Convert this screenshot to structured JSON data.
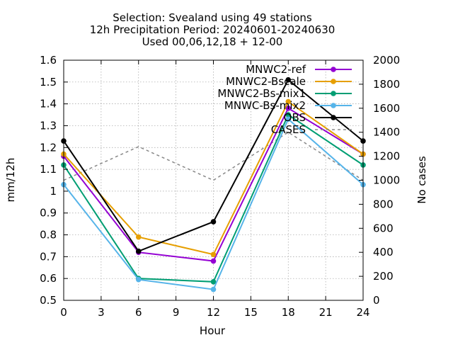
{
  "chart_data": {
    "type": "line",
    "title_lines": [
      "Selection: Svealand using    49 stations",
      "12h Precipitation   Period: 20240601-20240630",
      "Used 00,06,12,18 + 12-00"
    ],
    "xlabel": "Hour",
    "ylabel": "mm/12h",
    "y2label": "No cases",
    "xlim": [
      0,
      24
    ],
    "ylim": [
      0.5,
      1.6
    ],
    "y2lim": [
      0,
      2000
    ],
    "xticks": [
      0,
      3,
      6,
      9,
      12,
      15,
      18,
      21,
      24
    ],
    "yticks": [
      0.5,
      0.6,
      0.7,
      0.8,
      0.9,
      1.0,
      1.1,
      1.2,
      1.3,
      1.4,
      1.5,
      1.6
    ],
    "ytick_labels": [
      "0.5",
      "0.6",
      "0.7",
      "0.8",
      "0.9",
      "1",
      "1.1",
      "1.2",
      "1.3",
      "1.4",
      "1.5",
      "1.6"
    ],
    "y2ticks": [
      0,
      200,
      400,
      600,
      800,
      1000,
      1200,
      1400,
      1600,
      1800,
      2000
    ],
    "grid": true,
    "legend_position": "top-right",
    "x": [
      0,
      6,
      12,
      18,
      24
    ],
    "series": [
      {
        "name": "MNWC2-ref",
        "color": "#9400d3",
        "values": [
          1.16,
          0.72,
          0.68,
          1.38,
          1.17
        ]
      },
      {
        "name": "MNWC2-Bscale",
        "color": "#e69f00",
        "values": [
          1.17,
          0.79,
          0.71,
          1.41,
          1.17
        ]
      },
      {
        "name": "MNWC2-Bs-mix1",
        "color": "#009e73",
        "values": [
          1.12,
          0.6,
          0.585,
          1.35,
          1.12
        ]
      },
      {
        "name": "MNWC-Bs-mix2",
        "color": "#56b4e9",
        "values": [
          1.03,
          0.595,
          0.55,
          1.33,
          1.03
        ]
      },
      {
        "name": "OBS",
        "color": "#000000",
        "values": [
          1.23,
          0.725,
          0.86,
          1.51,
          1.23
        ]
      }
    ],
    "cases": {
      "name": "CASES",
      "color": "#888888",
      "axis": "y2",
      "values": [
        1000,
        1280,
        1000,
        1400,
        1000
      ]
    }
  }
}
